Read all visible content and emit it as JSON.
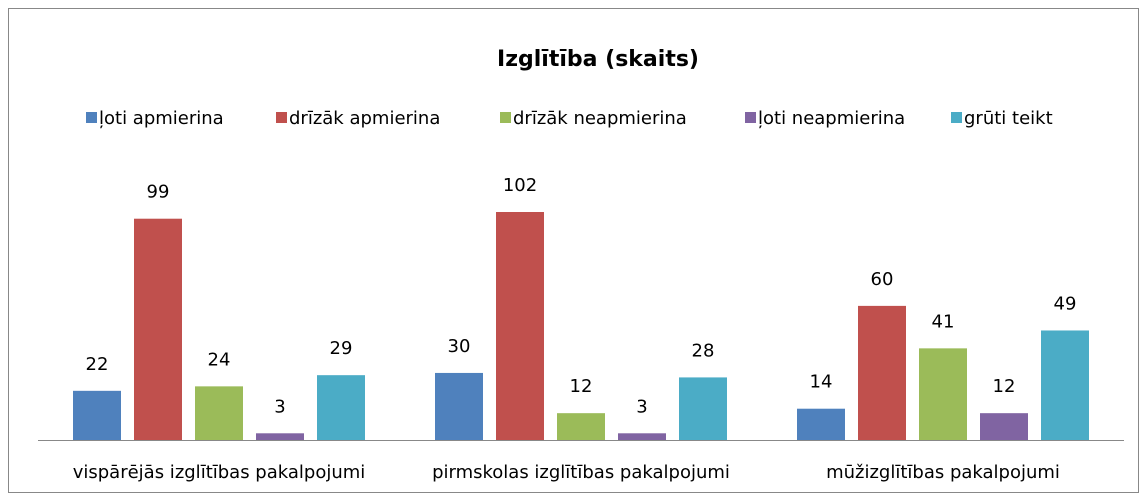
{
  "chart_data": {
    "type": "bar",
    "title": "Izglītība (skaits)",
    "categories": [
      "vispārējās izglītības pakalpojumi",
      "pirmskolas izglītības pakalpojumi",
      "mūžizglītības pakalpojumi"
    ],
    "series": [
      {
        "name": "ļoti apmierina",
        "color": "#4f81bd",
        "values": [
          22,
          30,
          14
        ]
      },
      {
        "name": "drīzāk apmierina",
        "color": "#c0504d",
        "values": [
          99,
          102,
          60
        ]
      },
      {
        "name": "drīzāk neapmierina",
        "color": "#9bbb59",
        "values": [
          24,
          12,
          41
        ]
      },
      {
        "name": "ļoti neapmierina",
        "color": "#8064a2",
        "values": [
          3,
          3,
          12
        ]
      },
      {
        "name": "grūti teikt",
        "color": "#4bacc6",
        "values": [
          29,
          28,
          49
        ]
      }
    ],
    "legend": "top"
  }
}
